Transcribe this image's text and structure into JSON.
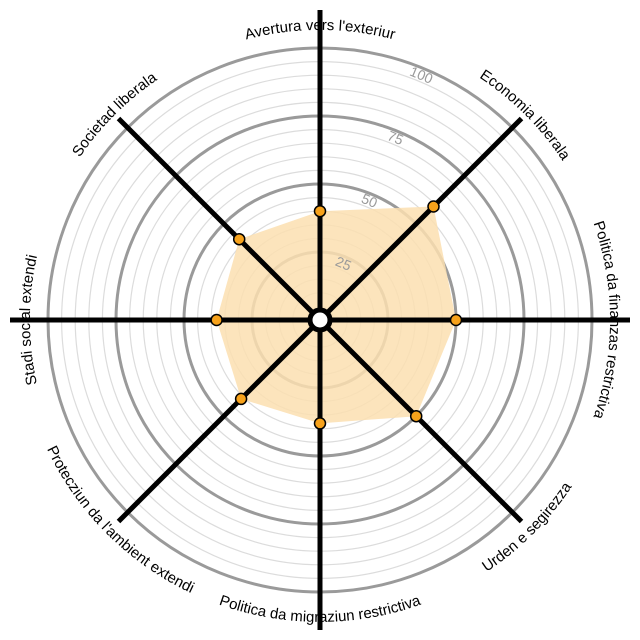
{
  "chart_data": {
    "type": "radar",
    "axes": [
      "Avertura vers l'exteriur",
      "Economia liberala",
      "Politica da finanzas restrictiva",
      "Urden e segirezza",
      "Politica da migraziun restrictiva",
      "Protecziun da l'ambient extendi",
      "Stadi social extendi",
      "Societad liberala"
    ],
    "values": [
      40,
      59,
      50,
      50,
      38,
      41,
      38,
      42
    ],
    "rlim": [
      0,
      100
    ],
    "ticks": [
      25,
      50,
      75,
      100
    ],
    "tick_labels": [
      "25",
      "50",
      "75",
      "100"
    ],
    "minor_step": 5,
    "colors": {
      "fill": "#fbdfb0",
      "marker": "#f7a21b",
      "spoke": "#000000",
      "major_ring": "#9a9a9a",
      "minor_ring": "#dcdcdc"
    }
  }
}
